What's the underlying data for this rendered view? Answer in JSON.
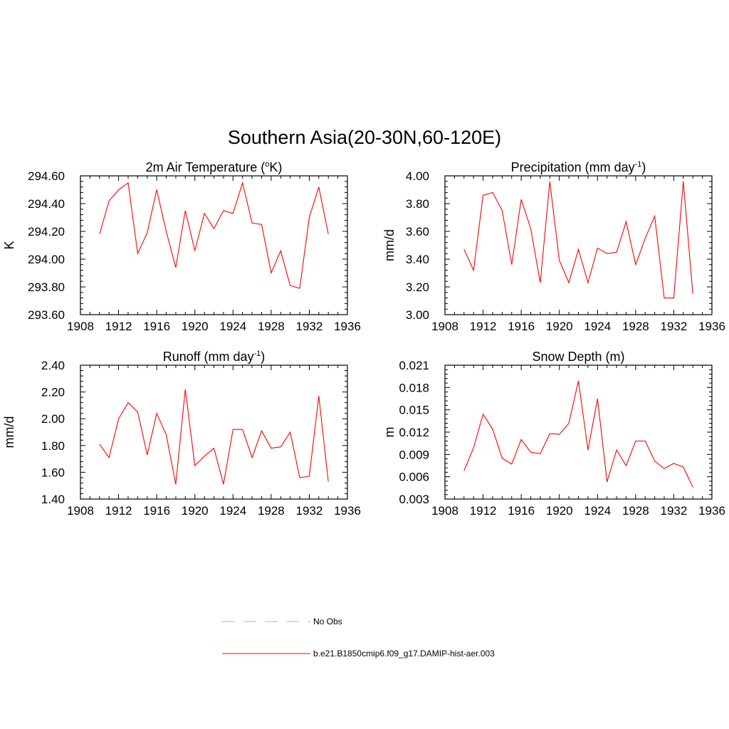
{
  "figure": {
    "title": "Southern Asia(20-30N,60-120E)"
  },
  "legend": {
    "entries": [
      {
        "label": "No Obs",
        "color": "#aab3ee",
        "style": "dashed"
      },
      {
        "label": "b.e21.B1850cmip6.f09_g17.DAMIP-hist-aer.003",
        "color": "#ff0000",
        "style": "solid"
      }
    ]
  },
  "chart_data": [
    {
      "type": "line",
      "title": "2m Air Temperature (",
      "title_sup": "o",
      "title_suffix": "K)",
      "ylabel": "K",
      "xlim": [
        1908,
        1936
      ],
      "ylim": [
        293.6,
        294.6
      ],
      "xticks": [
        1908,
        1912,
        1916,
        1920,
        1924,
        1928,
        1932,
        1936
      ],
      "yticks": [
        "293.60",
        "293.80",
        "294.00",
        "294.20",
        "294.40",
        "294.60"
      ],
      "series": [
        {
          "color": "#ff0000",
          "x": [
            1910,
            1911,
            1912,
            1913,
            1914,
            1915,
            1916,
            1917,
            1918,
            1919,
            1920,
            1921,
            1922,
            1923,
            1924,
            1925,
            1926,
            1927,
            1928,
            1929,
            1930,
            1931,
            1932,
            1933,
            1934
          ],
          "y": [
            294.18,
            294.42,
            294.5,
            294.55,
            294.04,
            294.19,
            294.5,
            294.2,
            293.94,
            294.35,
            294.06,
            294.33,
            294.22,
            294.35,
            294.33,
            294.55,
            294.26,
            294.25,
            293.9,
            294.06,
            293.81,
            293.79,
            294.3,
            294.52,
            294.18
          ]
        }
      ]
    },
    {
      "type": "line",
      "title": "Precipitation (mm day",
      "title_sup": "-1",
      "title_suffix": ")",
      "ylabel": "mm/d",
      "xlim": [
        1908,
        1936
      ],
      "ylim": [
        3.0,
        4.0
      ],
      "xticks": [
        1908,
        1912,
        1916,
        1920,
        1924,
        1928,
        1932,
        1936
      ],
      "yticks": [
        "3.00",
        "3.20",
        "3.40",
        "3.60",
        "3.80",
        "4.00"
      ],
      "series": [
        {
          "color": "#ff0000",
          "x": [
            1910,
            1911,
            1912,
            1913,
            1914,
            1915,
            1916,
            1917,
            1918,
            1919,
            1920,
            1921,
            1922,
            1923,
            1924,
            1925,
            1926,
            1927,
            1928,
            1929,
            1930,
            1931,
            1932,
            1933,
            1934
          ],
          "y": [
            3.47,
            3.32,
            3.86,
            3.88,
            3.75,
            3.36,
            3.83,
            3.62,
            3.23,
            3.96,
            3.39,
            3.23,
            3.47,
            3.23,
            3.48,
            3.44,
            3.45,
            3.67,
            3.36,
            3.55,
            3.71,
            3.12,
            3.12,
            3.96,
            3.15
          ]
        }
      ]
    },
    {
      "type": "line",
      "title": "Runoff (mm day",
      "title_sup": "-1",
      "title_suffix": ")",
      "ylabel": "mm/d",
      "xlim": [
        1908,
        1936
      ],
      "ylim": [
        1.4,
        2.4
      ],
      "xticks": [
        1908,
        1912,
        1916,
        1920,
        1924,
        1928,
        1932,
        1936
      ],
      "yticks": [
        "1.40",
        "1.60",
        "1.80",
        "2.00",
        "2.20",
        "2.40"
      ],
      "series": [
        {
          "color": "#ff0000",
          "x": [
            1910,
            1911,
            1912,
            1913,
            1914,
            1915,
            1916,
            1917,
            1918,
            1919,
            1920,
            1921,
            1922,
            1923,
            1924,
            1925,
            1926,
            1927,
            1928,
            1929,
            1930,
            1931,
            1932,
            1933,
            1934
          ],
          "y": [
            1.81,
            1.71,
            2.0,
            2.12,
            2.05,
            1.73,
            2.04,
            1.88,
            1.51,
            2.22,
            1.65,
            1.72,
            1.78,
            1.51,
            1.92,
            1.92,
            1.71,
            1.91,
            1.78,
            1.79,
            1.9,
            1.56,
            1.57,
            2.17,
            1.53
          ]
        }
      ]
    },
    {
      "type": "line",
      "title": "Snow Depth (m)",
      "title_sup": "",
      "title_suffix": "",
      "ylabel": "m",
      "xlim": [
        1908,
        1936
      ],
      "ylim": [
        0.003,
        0.021
      ],
      "xticks": [
        1908,
        1912,
        1916,
        1920,
        1924,
        1928,
        1932,
        1936
      ],
      "yticks": [
        "0.003",
        "0.006",
        "0.009",
        "0.012",
        "0.015",
        "0.018",
        "0.021"
      ],
      "series": [
        {
          "color": "#ff0000",
          "x": [
            1910,
            1911,
            1912,
            1913,
            1914,
            1915,
            1916,
            1917,
            1918,
            1919,
            1920,
            1921,
            1922,
            1923,
            1924,
            1925,
            1926,
            1927,
            1928,
            1929,
            1930,
            1931,
            1932,
            1933,
            1934
          ],
          "y": [
            0.0068,
            0.0099,
            0.0144,
            0.0124,
            0.0085,
            0.0077,
            0.011,
            0.0093,
            0.0091,
            0.0118,
            0.0117,
            0.0132,
            0.0189,
            0.0096,
            0.0165,
            0.0053,
            0.0096,
            0.0075,
            0.0108,
            0.0108,
            0.0081,
            0.0071,
            0.0078,
            0.0073,
            0.0046
          ]
        }
      ]
    }
  ]
}
